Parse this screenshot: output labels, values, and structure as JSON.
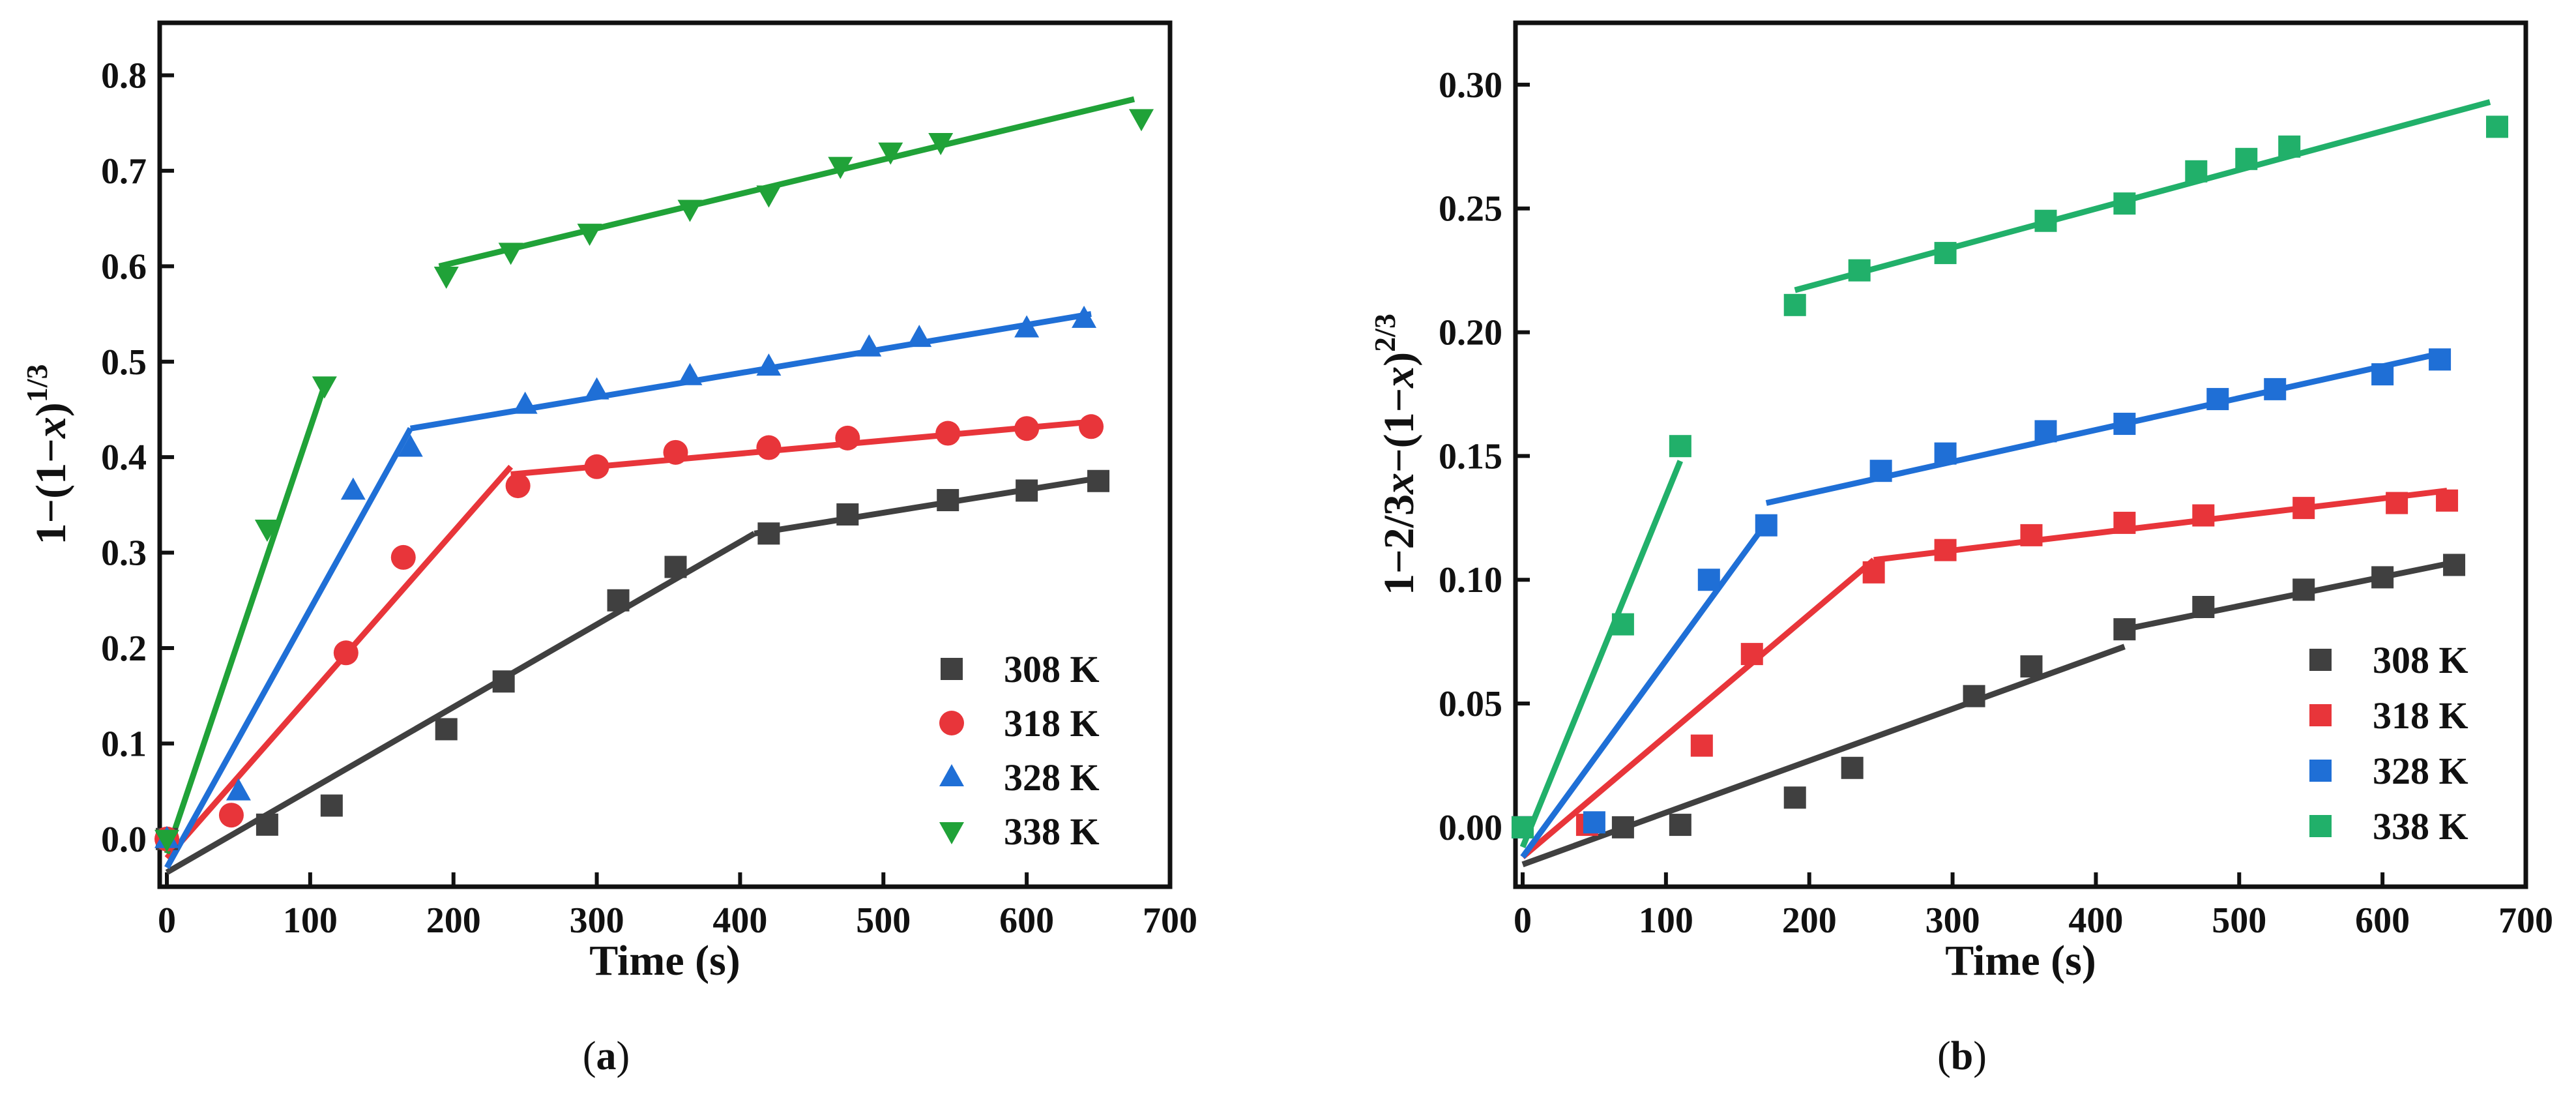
{
  "chart_data": [
    {
      "type": "scatter",
      "panel": "a",
      "caption_open": "(",
      "caption_letter": "a",
      "caption_close": ")",
      "xlabel": "Time (s)",
      "ylabel": "1−(1−x)1/3",
      "ylabel_parts": {
        "pre": "1−(1−",
        "var": "x",
        "post": ")",
        "sup": "1/3"
      },
      "xlim": [
        -5,
        700
      ],
      "ylim": [
        -0.05,
        0.855
      ],
      "x_ticks": [
        0,
        100,
        200,
        300,
        400,
        500,
        600,
        700
      ],
      "x_tick_labels": [
        "0",
        "100",
        "200",
        "300",
        "400",
        "500",
        "600",
        "700"
      ],
      "y_ticks": [
        0.0,
        0.1,
        0.2,
        0.3,
        0.4,
        0.5,
        0.6,
        0.7,
        0.8
      ],
      "y_tick_labels": [
        "0.0",
        "0.1",
        "0.2",
        "0.3",
        "0.4",
        "0.5",
        "0.6",
        "0.7",
        "0.8"
      ],
      "legend_position": "bottom-right",
      "series": [
        {
          "name": "308 K",
          "color": "#404040",
          "marker": "square",
          "x": [
            0,
            70,
            115,
            195,
            235,
            315,
            355,
            420,
            475,
            545,
            600,
            650
          ],
          "y": [
            0.0,
            0.015,
            0.035,
            0.115,
            0.165,
            0.25,
            0.285,
            0.32,
            0.34,
            0.355,
            0.365,
            0.375
          ],
          "fit_lines": [
            {
              "x": [
                0,
                410
              ],
              "y": [
                -0.035,
                0.32
              ]
            },
            {
              "x": [
                410,
                650
              ],
              "y": [
                0.32,
                0.378
              ]
            }
          ]
        },
        {
          "name": "318 K",
          "color": "#e8353a",
          "marker": "circle",
          "x": [
            0,
            45,
            125,
            165,
            245,
            300,
            355,
            420,
            475,
            545,
            600,
            645
          ],
          "y": [
            0.0,
            0.025,
            0.195,
            0.295,
            0.37,
            0.39,
            0.405,
            0.41,
            0.42,
            0.425,
            0.43,
            0.432
          ],
          "fit_lines": [
            {
              "x": [
                0,
                240
              ],
              "y": [
                -0.02,
                0.39
              ]
            },
            {
              "x": [
                240,
                645
              ],
              "y": [
                0.382,
                0.437
              ]
            }
          ]
        },
        {
          "name": "328 K",
          "color": "#1f6fd6",
          "marker": "triangle-up",
          "x": [
            0,
            50,
            130,
            170,
            250,
            300,
            365,
            420,
            490,
            525,
            600,
            640
          ],
          "y": [
            0.0,
            0.05,
            0.365,
            0.41,
            0.455,
            0.47,
            0.485,
            0.495,
            0.515,
            0.525,
            0.535,
            0.545
          ],
          "fit_lines": [
            {
              "x": [
                0,
                170
              ],
              "y": [
                -0.03,
                0.43
              ]
            },
            {
              "x": [
                170,
                645
              ],
              "y": [
                0.43,
                0.55
              ]
            }
          ]
        },
        {
          "name": "338 K",
          "color": "#20a238",
          "marker": "triangle-down",
          "x": [
            0,
            70,
            110,
            195,
            240,
            295,
            365,
            420,
            470,
            505,
            540,
            680
          ],
          "y": [
            0.0,
            0.325,
            0.475,
            0.59,
            0.615,
            0.635,
            0.66,
            0.675,
            0.705,
            0.72,
            0.73,
            0.755
          ],
          "fit_lines": [
            {
              "x": [
                0,
                110
              ],
              "y": [
                -0.015,
                0.475
              ]
            },
            {
              "x": [
                190,
                675
              ],
              "y": [
                0.6,
                0.775
              ]
            }
          ]
        }
      ]
    },
    {
      "type": "scatter",
      "panel": "b",
      "caption_open": "(",
      "caption_letter": "b",
      "caption_close": ")",
      "xlabel": "Time (s)",
      "ylabel": "1−2/3x−(1−x)2/3",
      "ylabel_parts": {
        "pre": "1−2/3",
        "var": "x",
        "post": "−(1−",
        "var2": "x",
        "post2": ")",
        "sup": "2/3"
      },
      "xlim": [
        -5,
        700
      ],
      "ylim": [
        -0.024,
        0.325
      ],
      "x_ticks": [
        0,
        100,
        200,
        300,
        400,
        500,
        600,
        700
      ],
      "x_tick_labels": [
        "0",
        "100",
        "200",
        "300",
        "400",
        "500",
        "600",
        "700"
      ],
      "y_ticks": [
        0.0,
        0.05,
        0.1,
        0.15,
        0.2,
        0.25,
        0.3
      ],
      "y_tick_labels": [
        "0.00",
        "0.05",
        "0.10",
        "0.15",
        "0.20",
        "0.25",
        "0.30"
      ],
      "legend_position": "bottom-right",
      "series": [
        {
          "name": "308 K",
          "color": "#404040",
          "marker": "square",
          "x": [
            0,
            70,
            110,
            190,
            230,
            315,
            355,
            420,
            475,
            545,
            600,
            650
          ],
          "y": [
            0.0,
            0.0,
            0.001,
            0.012,
            0.024,
            0.053,
            0.065,
            0.08,
            0.089,
            0.096,
            0.101,
            0.106
          ],
          "fit_lines": [
            {
              "x": [
                0,
                420
              ],
              "y": [
                -0.015,
                0.073
              ]
            },
            {
              "x": [
                420,
                650
              ],
              "y": [
                0.08,
                0.107
              ]
            }
          ]
        },
        {
          "name": "318 K",
          "color": "#e8353a",
          "marker": "square",
          "x": [
            0,
            45,
            125,
            160,
            245,
            295,
            355,
            420,
            475,
            545,
            610,
            645
          ],
          "y": [
            0.0,
            0.001,
            0.033,
            0.07,
            0.103,
            0.112,
            0.118,
            0.123,
            0.126,
            0.129,
            0.131,
            0.132
          ],
          "fit_lines": [
            {
              "x": [
                0,
                245
              ],
              "y": [
                -0.012,
                0.108
              ]
            },
            {
              "x": [
                245,
                645
              ],
              "y": [
                0.108,
                0.136
              ]
            }
          ]
        },
        {
          "name": "328 K",
          "color": "#1f6fd6",
          "marker": "square",
          "x": [
            0,
            50,
            130,
            170,
            250,
            295,
            365,
            420,
            485,
            525,
            600,
            640
          ],
          "y": [
            0.0,
            0.002,
            0.1,
            0.122,
            0.144,
            0.151,
            0.16,
            0.163,
            0.173,
            0.177,
            0.183,
            0.189
          ],
          "fit_lines": [
            {
              "x": [
                0,
                170
              ],
              "y": [
                -0.012,
                0.123
              ]
            },
            {
              "x": [
                170,
                645
              ],
              "y": [
                0.131,
                0.192
              ]
            }
          ]
        },
        {
          "name": "338 K",
          "color": "#21b06a",
          "marker": "square",
          "x": [
            0,
            70,
            110,
            190,
            235,
            295,
            365,
            420,
            470,
            505,
            535,
            680
          ],
          "y": [
            0.0,
            0.082,
            0.154,
            0.211,
            0.225,
            0.232,
            0.245,
            0.252,
            0.265,
            0.27,
            0.275,
            0.283
          ],
          "fit_lines": [
            {
              "x": [
                0,
                110
              ],
              "y": [
                -0.008,
                0.148
              ]
            },
            {
              "x": [
                190,
                675
              ],
              "y": [
                0.217,
                0.293
              ]
            }
          ]
        }
      ]
    }
  ]
}
